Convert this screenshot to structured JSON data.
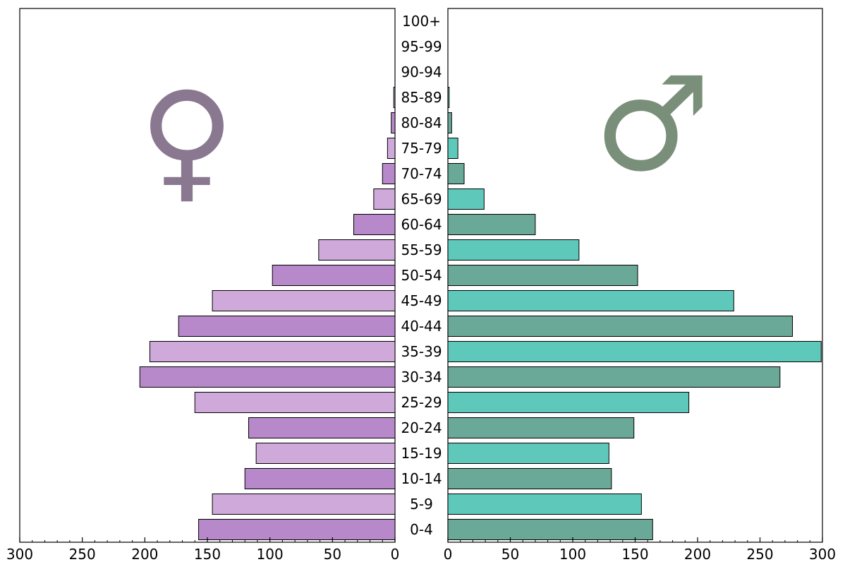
{
  "chart_data": {
    "type": "bar",
    "orientation": "horizontal",
    "layout": "population-pyramid",
    "categories": [
      "0-4",
      "5-9",
      "10-14",
      "15-19",
      "20-24",
      "25-29",
      "30-34",
      "35-39",
      "40-44",
      "45-49",
      "50-54",
      "55-59",
      "60-64",
      "65-69",
      "70-74",
      "75-79",
      "80-84",
      "85-89",
      "90-94",
      "95-99",
      "100+"
    ],
    "series": [
      {
        "side": "left",
        "symbol": "♀",
        "colors": [
          "#b788ca",
          "#cfa9da"
        ],
        "symbol_color": "#8a7890",
        "values": [
          157,
          146,
          120,
          111,
          117,
          160,
          204,
          196,
          173,
          146,
          98,
          61,
          33,
          17,
          10,
          6,
          3,
          1,
          0,
          0,
          0
        ]
      },
      {
        "side": "right",
        "symbol": "♂",
        "colors": [
          "#6aa898",
          "#5ec9bb"
        ],
        "symbol_color": "#7a8f7a",
        "values": [
          164,
          155,
          131,
          129,
          149,
          193,
          266,
          299,
          276,
          229,
          152,
          105,
          70,
          29,
          13,
          8,
          3,
          1,
          0,
          0,
          0
        ]
      }
    ],
    "xlim": [
      0,
      300
    ],
    "xticks": [
      0,
      50,
      100,
      150,
      200,
      250,
      300
    ],
    "left_tick_labels": [
      "300",
      "250",
      "200",
      "150",
      "100",
      "50",
      "0"
    ],
    "right_tick_labels": [
      "0",
      "50",
      "100",
      "150",
      "200",
      "250",
      "300"
    ],
    "grid": false,
    "title": "",
    "xlabel": "",
    "ylabel": ""
  }
}
